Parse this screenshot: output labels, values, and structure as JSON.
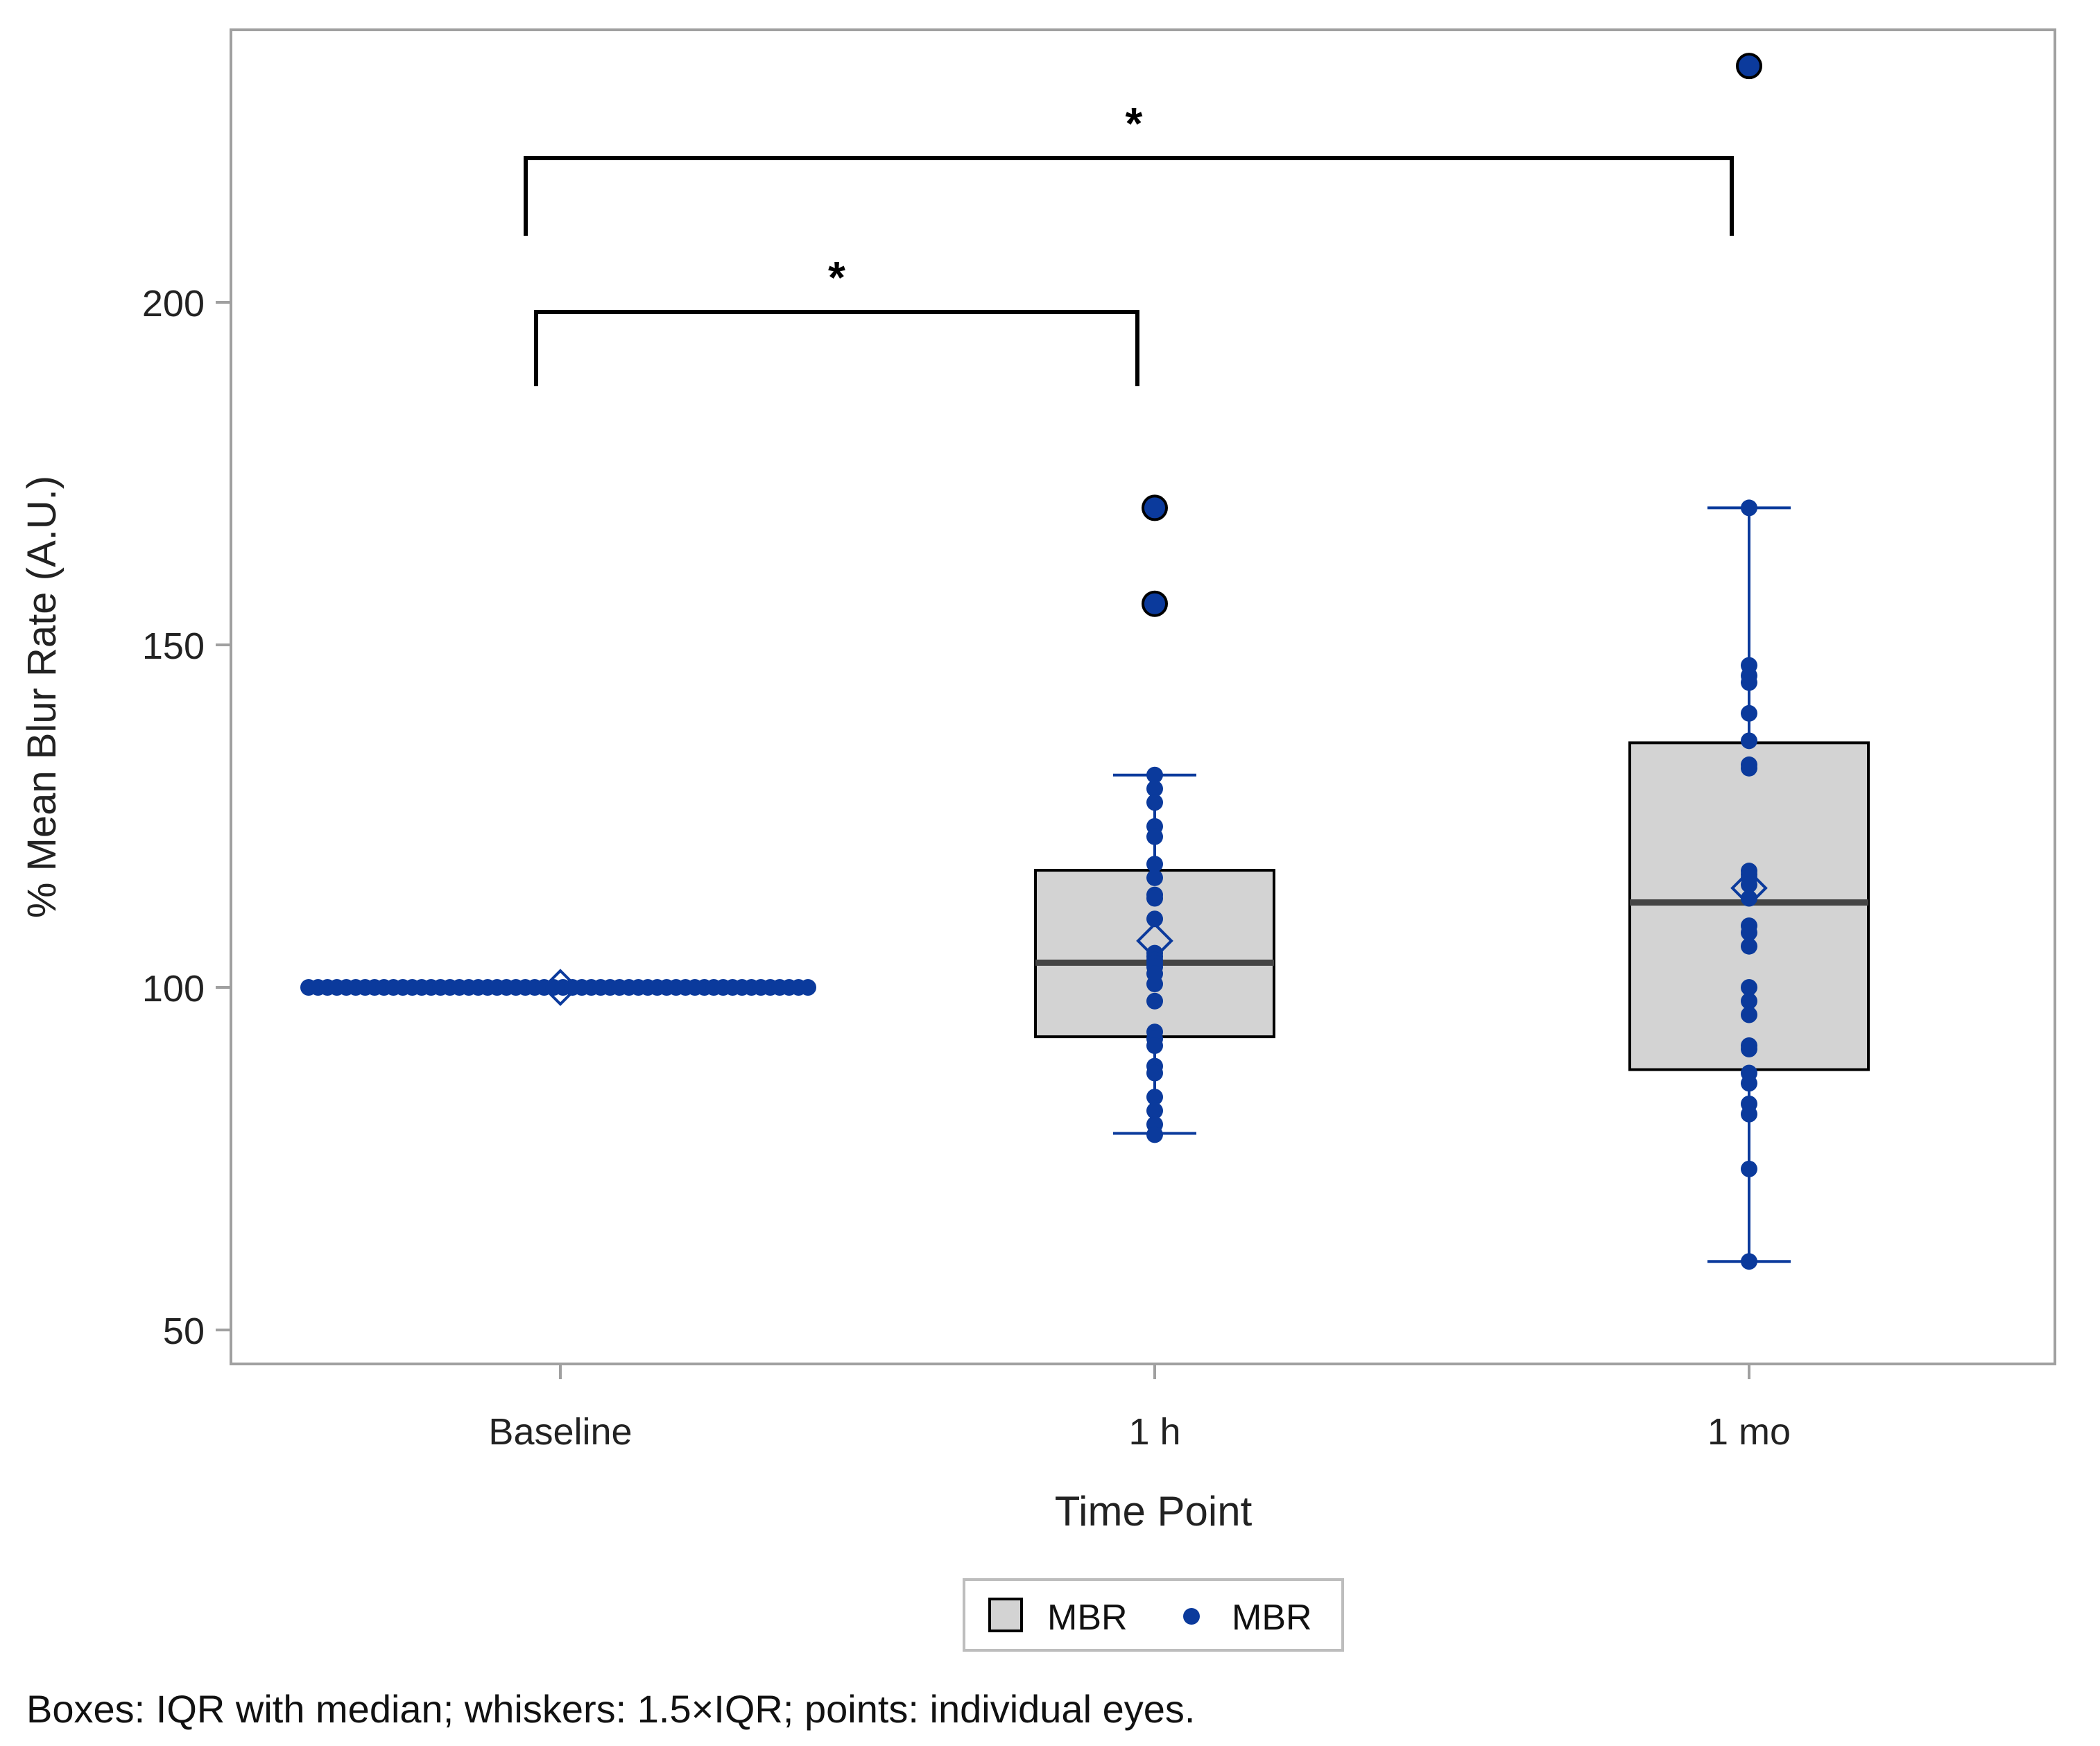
{
  "chart_data": {
    "type": "box",
    "xlabel": "Time Point",
    "ylabel": "% Mean Blur Rate (A.U.)",
    "ylim": [
      45,
      244
    ],
    "yticks": [
      50,
      100,
      150,
      200
    ],
    "categories": [
      "Baseline",
      "1 h",
      "1 mo"
    ],
    "boxes": [
      {
        "category": "Baseline",
        "q1": 100,
        "median": 100,
        "q3": 100,
        "mean": 100,
        "whisker_low": 100,
        "whisker_high": 100
      },
      {
        "category": "1 h",
        "q1": 92.8,
        "median": 103.6,
        "q3": 117.1,
        "mean": 106.8,
        "whisker_low": 78.7,
        "whisker_high": 131
      },
      {
        "category": "1 mo",
        "q1": 88,
        "median": 112.4,
        "q3": 135.7,
        "mean": 114.5,
        "whisker_low": 60,
        "whisker_high": 170
      }
    ],
    "outliers": [
      {
        "category": "1 h",
        "values": [
          170,
          156
        ]
      },
      {
        "category": "1 mo",
        "values": [
          234.5
        ]
      }
    ],
    "points": [
      {
        "category": "Baseline",
        "values": [
          100,
          100,
          100,
          100,
          100,
          100,
          100,
          100,
          100,
          100,
          100,
          100,
          100,
          100,
          100,
          100,
          100,
          100,
          100,
          100,
          100,
          100,
          100,
          100,
          100,
          100,
          100,
          100,
          100,
          100,
          100,
          100,
          100,
          100,
          100,
          100,
          100,
          100,
          100,
          100,
          100,
          100,
          100,
          100,
          100,
          100,
          100,
          100,
          100,
          100,
          100,
          100,
          100,
          100
        ]
      },
      {
        "category": "1 h",
        "values": [
          131,
          129,
          127,
          123.5,
          122,
          118,
          116,
          113.5,
          113,
          110,
          105,
          104.5,
          104,
          103.5,
          103,
          102,
          100.5,
          98,
          93.5,
          92.5,
          91.5,
          88.5,
          87.5,
          84,
          82,
          80,
          78.5
        ]
      },
      {
        "category": "1 mo",
        "values": [
          170,
          147,
          145.5,
          144.5,
          140,
          136,
          132.5,
          132,
          117,
          116.5,
          116,
          115,
          113,
          109,
          108,
          106,
          100,
          98,
          96,
          91.5,
          91,
          87.5,
          86,
          83,
          81.5,
          73.5,
          60
        ]
      }
    ],
    "significance": [
      {
        "from": "Baseline",
        "to": "1 h",
        "label": "*"
      },
      {
        "from": "Baseline",
        "to": "1 mo",
        "label": "*"
      }
    ],
    "legend": [
      {
        "label": "MBR",
        "kind": "box"
      },
      {
        "label": "MBR",
        "kind": "point"
      }
    ],
    "colors": {
      "box_fill": "#d3d3d3",
      "point": "#0b3a9c",
      "axis": "#a0a0a0"
    }
  },
  "footnote": "Boxes: IQR with median; whiskers: 1.5×IQR; points: individual eyes."
}
